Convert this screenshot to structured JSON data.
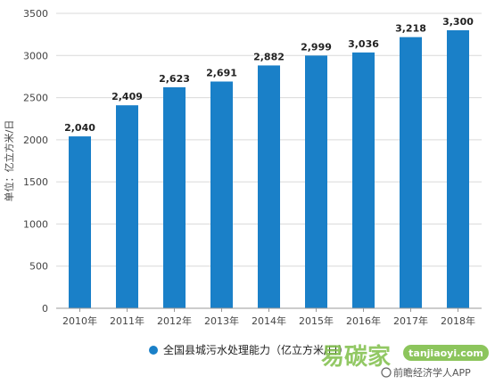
{
  "chart_data": {
    "type": "bar",
    "categories": [
      "2010年",
      "2011年",
      "2012年",
      "2013年",
      "2014年",
      "2015年",
      "2016年",
      "2017年",
      "2018年"
    ],
    "values": [
      2040,
      2409,
      2623,
      2691,
      2882,
      2999,
      3036,
      3218,
      3300
    ],
    "data_labels": [
      "2,040",
      "2,409",
      "2,623",
      "2,691",
      "2,882",
      "2,999",
      "3,036",
      "3,218",
      "3,300"
    ],
    "ylabel": "单位：亿立方米/日",
    "ylim": [
      0,
      3500
    ],
    "yticks": [
      0,
      500,
      1000,
      1500,
      2000,
      2500,
      3000,
      3500
    ],
    "grid": true,
    "legend": {
      "position": "bottom",
      "entries": [
        "全国县城污水处理能力（亿立方米/日）"
      ]
    },
    "series_color": "#1a80c8"
  },
  "watermark": {
    "source": "前瞻经济学人APP",
    "brand_logo_text": "易碳家",
    "brand_url": "tanjiaoyi.com"
  }
}
